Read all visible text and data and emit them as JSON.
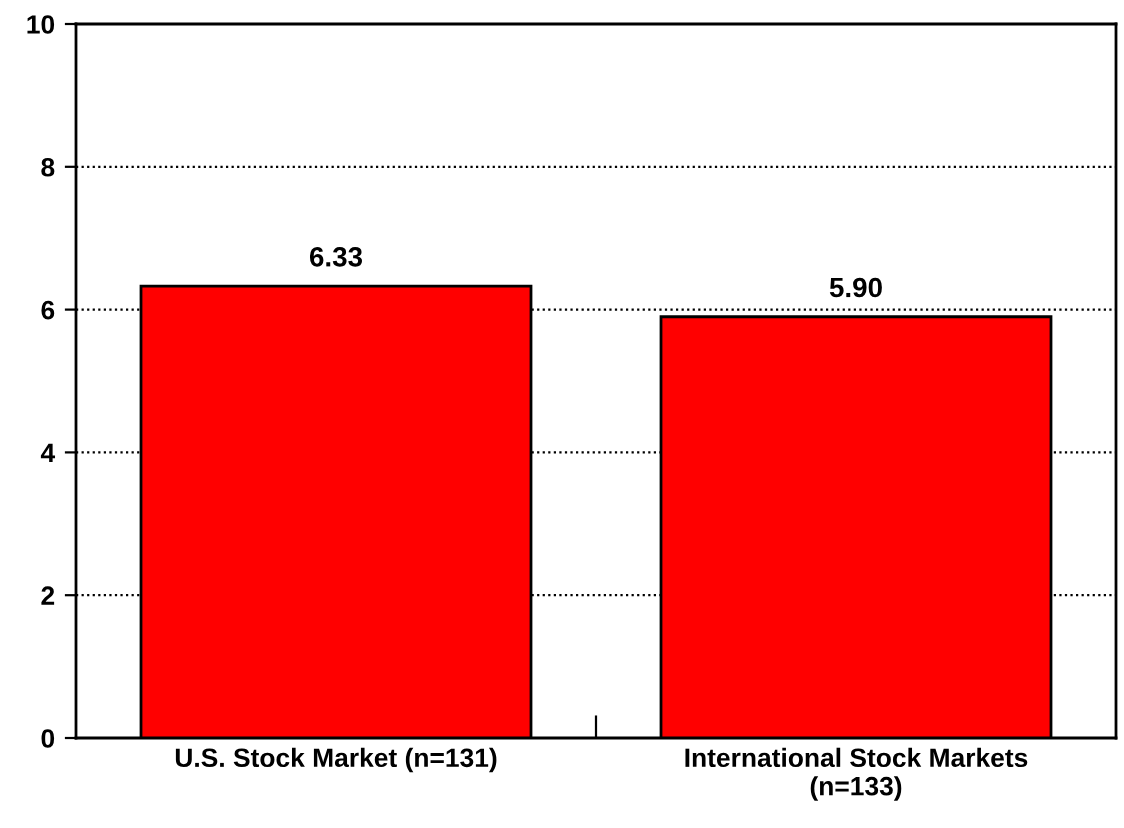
{
  "chart_data": {
    "type": "bar",
    "categories": [
      "U.S. Stock Market (n=131)",
      "International Stock Markets\n(n=133)"
    ],
    "values": [
      6.33,
      5.9
    ],
    "value_labels": [
      "6.33",
      "5.90"
    ],
    "color": "#ff0000",
    "ylim": [
      0,
      10
    ],
    "yticks": [
      0,
      2,
      4,
      6,
      8,
      10
    ],
    "grid": "y",
    "legend": false
  }
}
